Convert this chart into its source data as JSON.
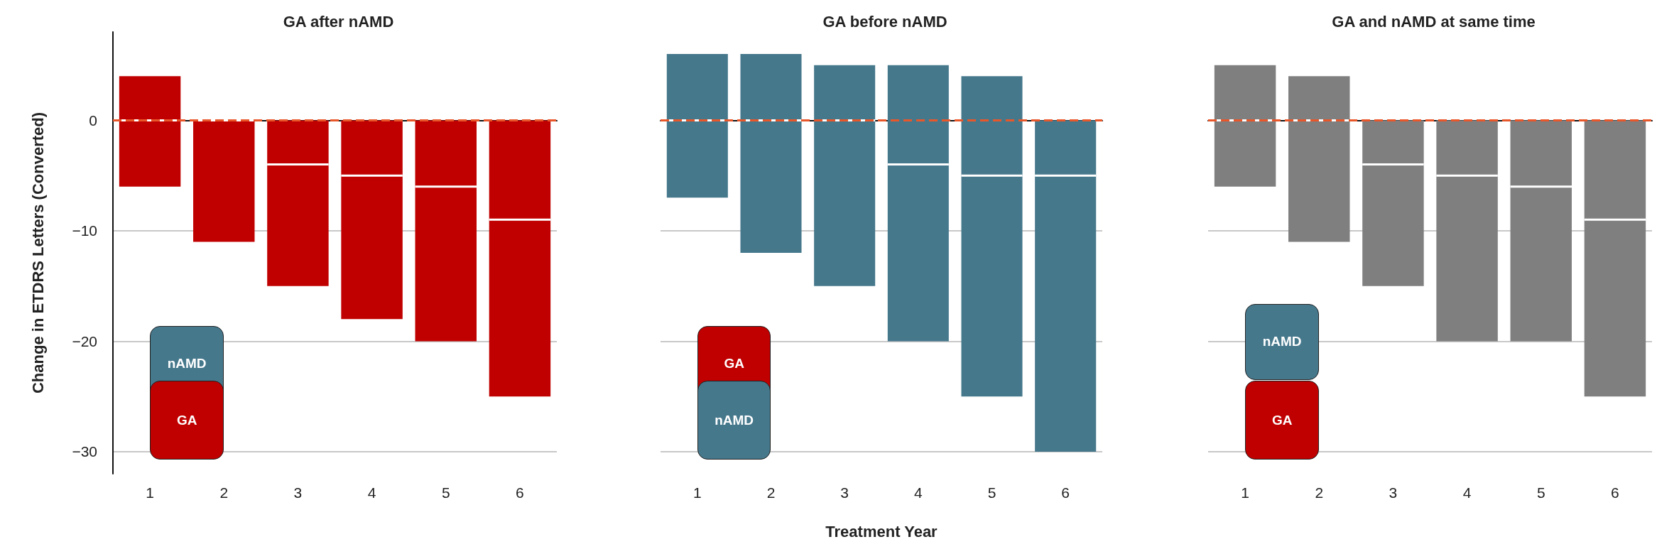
{
  "chart_data": [
    {
      "type": "box",
      "title": "GA after nAMD",
      "ylabel": "Change in ETDRS Letters (Converted)",
      "categories": [
        "1",
        "2",
        "3",
        "4",
        "5",
        "6"
      ],
      "color": "#c00000",
      "boxes": [
        {
          "low": -6,
          "q1": -6,
          "median": 0,
          "q3": 4,
          "high": 4
        },
        {
          "low": -11,
          "q1": -11,
          "median": 0,
          "q3": 0,
          "high": 0
        },
        {
          "low": -15,
          "q1": -15,
          "median": -4,
          "q3": 0,
          "high": 0
        },
        {
          "low": -18,
          "q1": -18,
          "median": -5,
          "q3": 0,
          "high": 0
        },
        {
          "low": -20,
          "q1": -20,
          "median": -6,
          "q3": 0,
          "high": 0
        },
        {
          "low": -25,
          "q1": -25,
          "median": -9,
          "q3": 0,
          "high": 0
        }
      ],
      "ylim": [
        -32,
        8
      ],
      "yticks": [
        {
          "value": -30,
          "label": "−30"
        },
        {
          "value": -20,
          "label": "−20"
        },
        {
          "value": -10,
          "label": "−10"
        },
        0
      ],
      "grid": "y",
      "ref_lines": [
        {
          "axis": "y",
          "value": 0,
          "label": null,
          "color": "#e8572a",
          "line_style": "dashed"
        }
      ],
      "annotations": [
        "nAMD",
        "GA"
      ]
    },
    {
      "type": "box",
      "title": "GA before nAMD",
      "xlabel": "Treatment Year",
      "categories": [
        "1",
        "2",
        "3",
        "4",
        "5",
        "6"
      ],
      "color": "#46788c",
      "boxes": [
        {
          "low": -7,
          "q1": -7,
          "median": 0,
          "q3": 6,
          "high": 6
        },
        {
          "low": -12,
          "q1": -12,
          "median": 0,
          "q3": 6,
          "high": 6
        },
        {
          "low": -15,
          "q1": -15,
          "median": 0,
          "q3": 5,
          "high": 5
        },
        {
          "low": -20,
          "q1": -20,
          "median": -4,
          "q3": 5,
          "high": 5
        },
        {
          "low": -25,
          "q1": -25,
          "median": -5,
          "q3": 4,
          "high": 4
        },
        {
          "low": -30,
          "q1": -30,
          "median": -5,
          "q3": 0,
          "high": 0
        }
      ],
      "yticks": [
        -30,
        -20,
        -10,
        0
      ],
      "grid": "y",
      "tick_labels": "x",
      "ref_lines": [
        {
          "axis": "y",
          "value": 0,
          "label": null,
          "color": "#e8572a",
          "line_style": "dashed"
        }
      ],
      "annotations": [
        "GA",
        "nAMD"
      ]
    },
    {
      "type": "box",
      "title": "GA and nAMD at same time",
      "categories": [
        "1",
        "2",
        "3",
        "4",
        "5",
        "6"
      ],
      "color": "#7f7f7f",
      "boxes": [
        {
          "low": -6,
          "q1": -6,
          "median": 0,
          "q3": 5,
          "high": 5
        },
        {
          "low": -11,
          "q1": -11,
          "median": 0,
          "q3": 4,
          "high": 4
        },
        {
          "low": -15,
          "q1": -15,
          "median": -4,
          "q3": 0,
          "high": 0
        },
        {
          "low": -20,
          "q1": -20,
          "median": -5,
          "q3": 0,
          "high": 0
        },
        {
          "low": -20,
          "q1": -20,
          "median": -6,
          "q3": 0,
          "high": 0
        },
        {
          "low": -25,
          "q1": -25,
          "median": -9,
          "q3": 0,
          "high": 0
        }
      ],
      "yticks": [
        -30,
        -20,
        -10,
        0
      ],
      "grid": "y",
      "tick_labels": "x",
      "ref_lines": [
        {
          "axis": "y",
          "value": 0,
          "label": null,
          "color": "#e8572a",
          "line_style": "dashed"
        }
      ],
      "annotations": [
        "nAMD",
        "GA"
      ]
    }
  ]
}
